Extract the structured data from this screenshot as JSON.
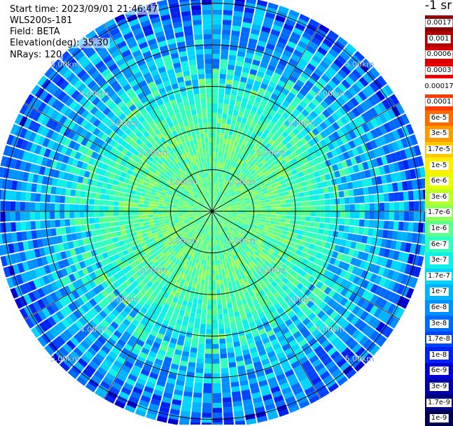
{
  "info": {
    "start_time": "Start time: 2023/09/01 21:46:47",
    "instrument": "WLS200s-181",
    "field": "Field: BETA",
    "elevation": "Elevation(deg): 35.30",
    "nrays": "NRays: 120"
  },
  "colorbar": {
    "units": "-1 sr",
    "entries": [
      {
        "label": "0.0017",
        "color": "#8b0000"
      },
      {
        "label": "0.001",
        "color": "#b00000"
      },
      {
        "label": "0.0006",
        "color": "#d40000"
      },
      {
        "label": "0.0003",
        "color": "#ee0000"
      },
      {
        "label": "0.00017",
        "color": "#ffffff"
      },
      {
        "label": "0.0001",
        "color": "#ff3a00"
      },
      {
        "label": "6e-5",
        "color": "#ff6a00"
      },
      {
        "label": "3e-5",
        "color": "#ff9a00"
      },
      {
        "label": "1.7e-5",
        "color": "#ffc800"
      },
      {
        "label": "1e-5",
        "color": "#ffee00"
      },
      {
        "label": "6e-6",
        "color": "#e6ff00"
      },
      {
        "label": "3e-6",
        "color": "#b8ff2a"
      },
      {
        "label": "1.7e-6",
        "color": "#8cff5a"
      },
      {
        "label": "1e-6",
        "color": "#5cff8c"
      },
      {
        "label": "6e-7",
        "color": "#30ffbe"
      },
      {
        "label": "3e-7",
        "color": "#10f0e8"
      },
      {
        "label": "1.7e-7",
        "color": "#00d6ff"
      },
      {
        "label": "1e-7",
        "color": "#00b4ff"
      },
      {
        "label": "6e-8",
        "color": "#0090ff"
      },
      {
        "label": "3e-8",
        "color": "#006aff"
      },
      {
        "label": "1.7e-8",
        "color": "#0044ff"
      },
      {
        "label": "1e-8",
        "color": "#0022ee"
      },
      {
        "label": "6e-9",
        "color": "#0000d0"
      },
      {
        "label": "3e-9",
        "color": "#0000a8"
      },
      {
        "label": "1.7e-9",
        "color": "#00007c"
      },
      {
        "label": "1e-9",
        "color": "#000050"
      }
    ]
  },
  "chart_data": {
    "type": "heatmap",
    "projection": "polar",
    "title": "",
    "field": "BETA",
    "units": "-1 sr",
    "n_rays": 120,
    "elevation_deg": 35.3,
    "range_rings_km": [
      1,
      2,
      3,
      4,
      5
    ],
    "range_ring_labels": [
      "1.00km",
      "2.00km",
      "3.00km",
      "4.00km",
      "5.00km"
    ],
    "spoke_angles_deg": [
      0,
      30,
      60,
      90,
      120,
      150,
      180,
      210,
      240,
      270,
      300,
      330
    ],
    "max_range_km": 5.2,
    "color_scale": "log",
    "value_range": [
      1e-09,
      0.0017
    ],
    "radial_profile": [
      {
        "range_km": 0.5,
        "beta": 1e-06
      },
      {
        "range_km": 1.5,
        "beta": 1e-06
      },
      {
        "range_km": 2.5,
        "beta": 6e-07
      },
      {
        "range_km": 3.5,
        "beta": 1.7e-07
      },
      {
        "range_km": 4.5,
        "beta": 6e-08
      },
      {
        "range_km": 5.0,
        "beta": 3e-08
      }
    ]
  }
}
